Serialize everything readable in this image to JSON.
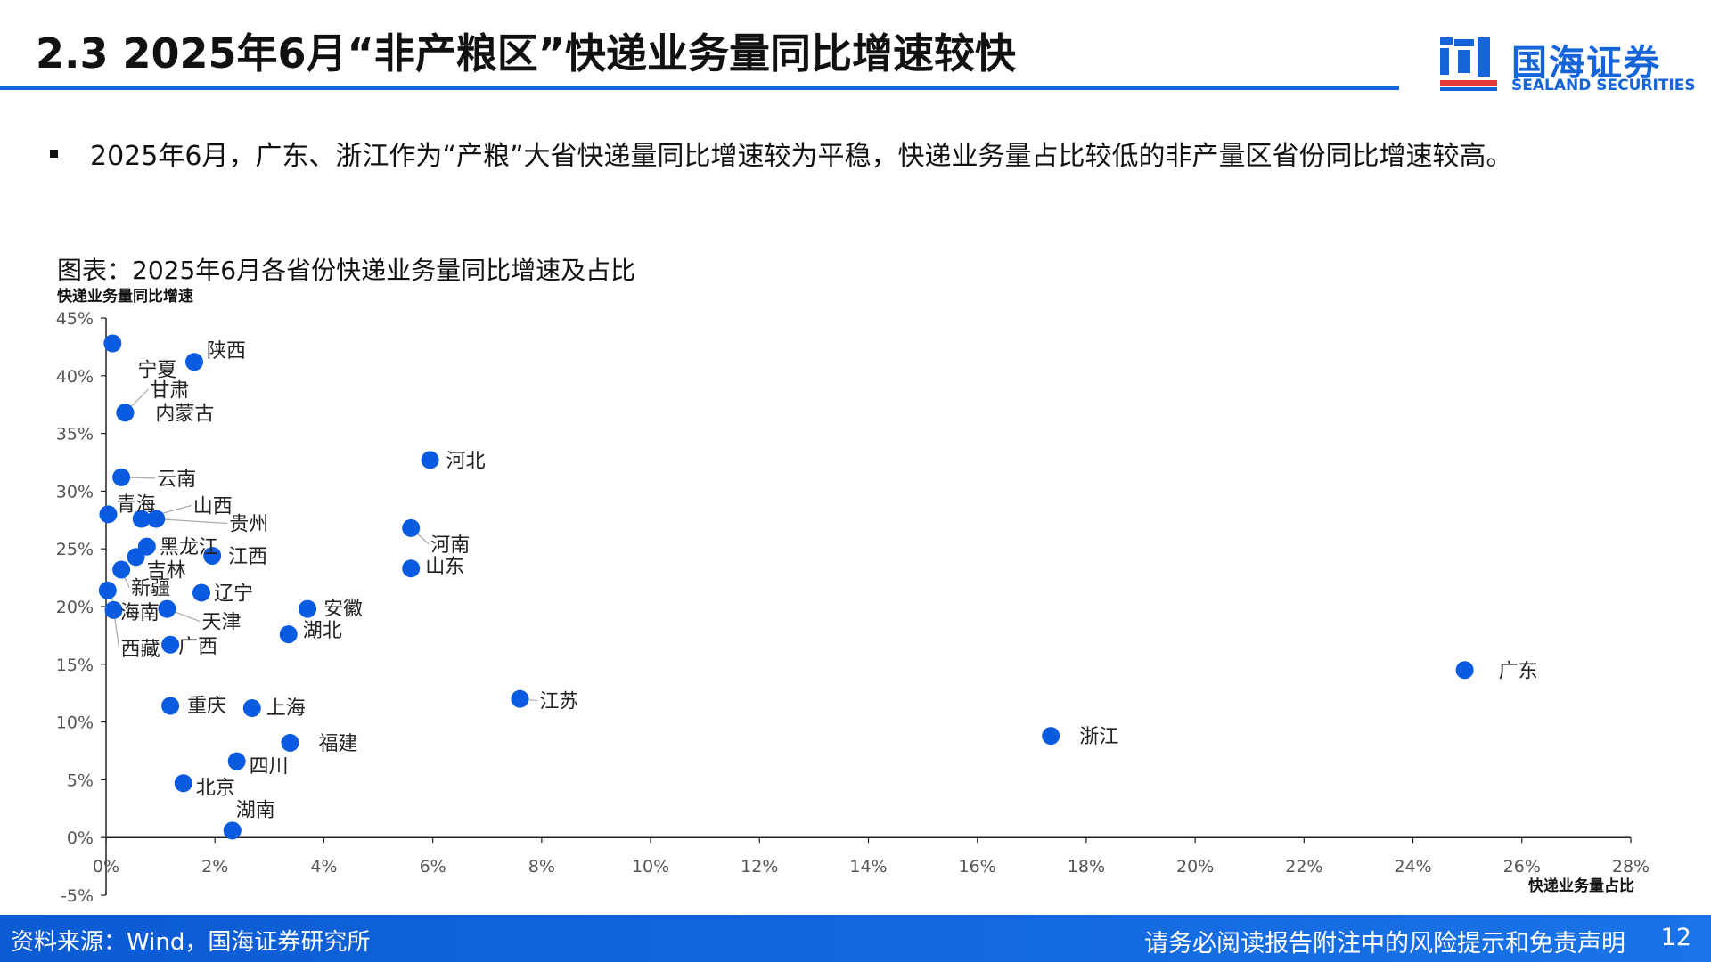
{
  "header": {
    "title": "2.3 2025年6月“非产粮区”快递业务量同比增速较快",
    "logo_cn": "国海证券",
    "logo_en": "SEALAND SECURITIES"
  },
  "bullet": {
    "text": "2025年6月，广东、浙江作为“产粮”大省快递量同比增速较为平稳，快递业务量占比较低的非产量区省份同比增速较高。"
  },
  "chart_title": "图表：2025年6月各省份快递业务量同比增速及占比",
  "chart_data": {
    "type": "scatter",
    "xlabel": "快递业务量占比",
    "ylabel": "快递业务量同比增速",
    "xlim": [
      0,
      28
    ],
    "ylim": [
      -5,
      45
    ],
    "x_ticks": [
      "0%",
      "2%",
      "4%",
      "6%",
      "8%",
      "10%",
      "12%",
      "14%",
      "16%",
      "18%",
      "20%",
      "22%",
      "24%",
      "26%",
      "28%"
    ],
    "y_ticks": [
      "-5%",
      "0%",
      "5%",
      "10%",
      "15%",
      "20%",
      "25%",
      "30%",
      "35%",
      "40%",
      "45%"
    ],
    "marker_color": "#0b5be0",
    "points": [
      {
        "name": "宁夏",
        "x": 0.12,
        "y": 42.8
      },
      {
        "name": "陕西",
        "x": 1.62,
        "y": 41.2
      },
      {
        "name": "甘肃",
        "x": 0.35,
        "y": 36.8
      },
      {
        "name": "内蒙古",
        "x": 0.35,
        "y": 36.8
      },
      {
        "name": "河北",
        "x": 5.95,
        "y": 32.7
      },
      {
        "name": "云南",
        "x": 0.28,
        "y": 31.2
      },
      {
        "name": "青海",
        "x": 0.04,
        "y": 28.0
      },
      {
        "name": "山西",
        "x": 0.65,
        "y": 27.6
      },
      {
        "name": "贵州",
        "x": 0.92,
        "y": 27.6
      },
      {
        "name": "河南",
        "x": 5.6,
        "y": 26.8
      },
      {
        "name": "黑龙江",
        "x": 0.75,
        "y": 25.2
      },
      {
        "name": "江西",
        "x": 1.95,
        "y": 24.4
      },
      {
        "name": "吉林",
        "x": 0.55,
        "y": 24.3
      },
      {
        "name": "山东",
        "x": 5.6,
        "y": 23.3
      },
      {
        "name": "新疆",
        "x": 0.28,
        "y": 23.2
      },
      {
        "name": "辽宁",
        "x": 1.75,
        "y": 21.2
      },
      {
        "name": "海南",
        "x": 0.03,
        "y": 21.4
      },
      {
        "name": "天津",
        "x": 1.12,
        "y": 19.8
      },
      {
        "name": "西藏",
        "x": 0.14,
        "y": 19.7
      },
      {
        "name": "安徽",
        "x": 3.7,
        "y": 19.8
      },
      {
        "name": "湖北",
        "x": 3.35,
        "y": 17.6
      },
      {
        "name": "广西",
        "x": 1.18,
        "y": 16.7
      },
      {
        "name": "广东",
        "x": 24.95,
        "y": 14.5
      },
      {
        "name": "江苏",
        "x": 7.6,
        "y": 12.0
      },
      {
        "name": "重庆",
        "x": 1.18,
        "y": 11.4
      },
      {
        "name": "上海",
        "x": 2.68,
        "y": 11.2
      },
      {
        "name": "浙江",
        "x": 17.35,
        "y": 8.8
      },
      {
        "name": "福建",
        "x": 3.38,
        "y": 8.2
      },
      {
        "name": "四川",
        "x": 2.4,
        "y": 6.6
      },
      {
        "name": "北京",
        "x": 1.42,
        "y": 4.7
      },
      {
        "name": "湖南",
        "x": 2.32,
        "y": 0.6
      }
    ]
  },
  "footer": {
    "source": "资料来源：Wind，国海证券研究所",
    "disclaimer": "请务必阅读报告附注中的风险提示和免责声明",
    "page": "12"
  }
}
